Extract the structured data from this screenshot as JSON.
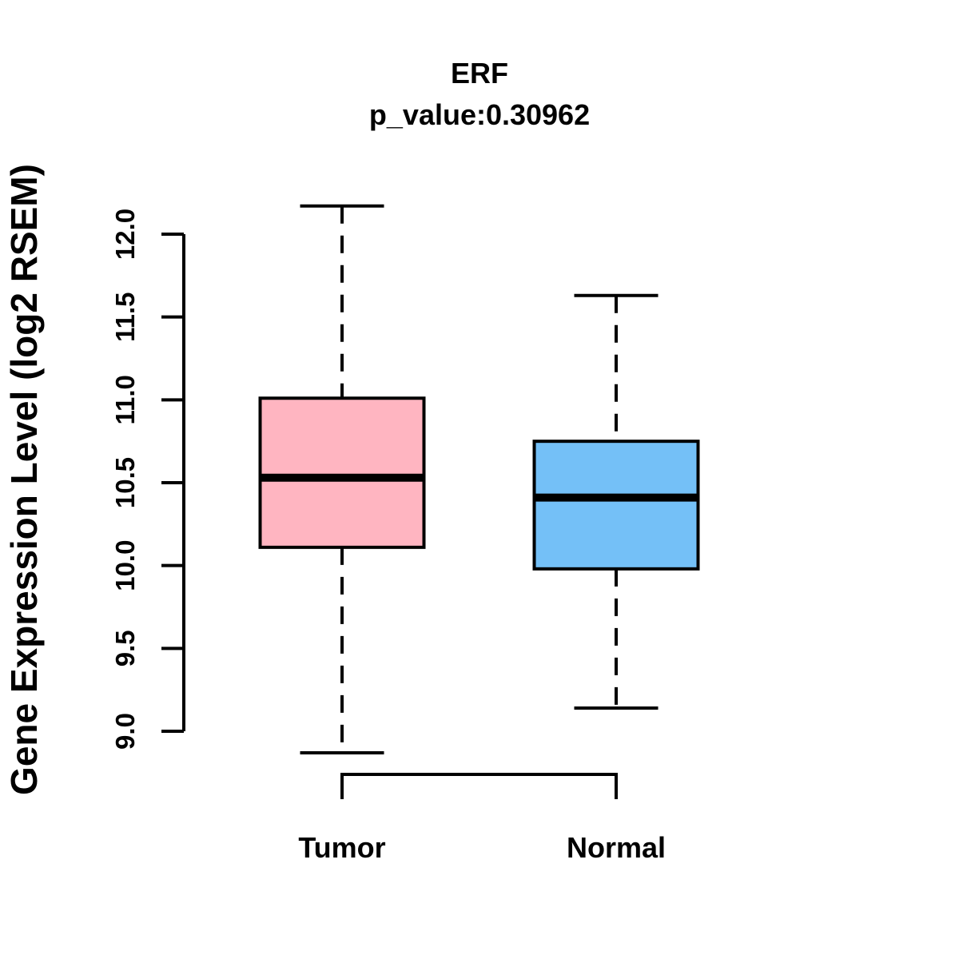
{
  "chart_data": {
    "type": "boxplot",
    "title": "ERF",
    "subtitle": "p_value:0.30962",
    "ylabel": "Gene Expression Level (log2 RSEM)",
    "xlabel": "",
    "categories": [
      "Tumor",
      "Normal"
    ],
    "ylim": [
      9.0,
      12.0
    ],
    "ytick_labels": [
      "9.0",
      "9.5",
      "10.0",
      "10.5",
      "11.0",
      "11.5",
      "12.0"
    ],
    "grid": false,
    "legend": "none",
    "boxes": [
      {
        "category": "Tumor",
        "fill_color": "#FFB5C1",
        "whisker_low": 8.87,
        "q1": 10.11,
        "median": 10.53,
        "q3": 11.01,
        "whisker_high": 12.17
      },
      {
        "category": "Normal",
        "fill_color": "#74C0F7",
        "whisker_low": 9.14,
        "q1": 9.98,
        "median": 10.41,
        "q3": 10.75,
        "whisker_high": 11.63
      }
    ],
    "line_color": "#000000",
    "background_color": "#FFFFFF"
  }
}
